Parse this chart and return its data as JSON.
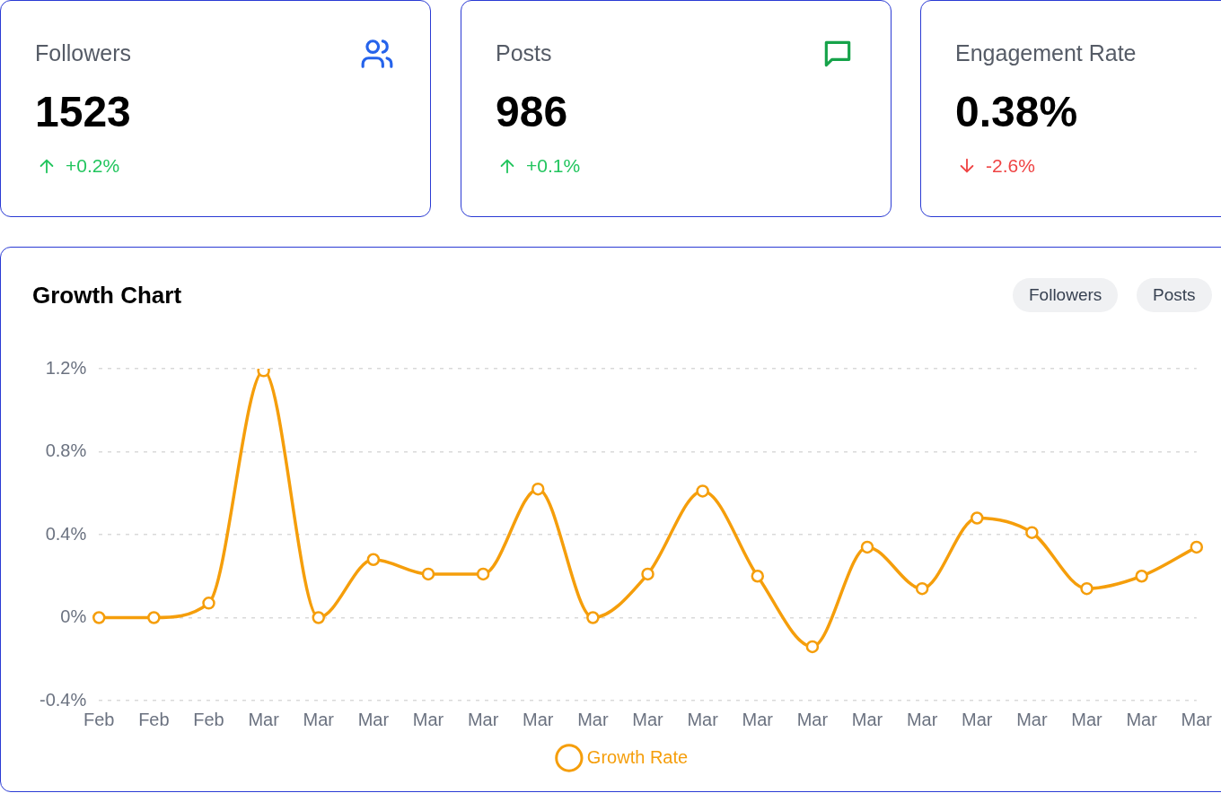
{
  "chart_data": [
    {
      "type": "other",
      "title": "Followers",
      "annotations": [
        "1523",
        "+0.2%"
      ],
      "color": "#22c55e"
    },
    {
      "type": "other",
      "title": "Posts",
      "annotations": [
        "986",
        "+0.1%"
      ],
      "color": "#22c55e"
    },
    {
      "type": "other",
      "title": "Engagement Rate",
      "annotations": [
        "0.38%",
        "-2.6%"
      ],
      "color": "#ef4444"
    },
    {
      "type": "line",
      "title": "Growth Chart",
      "annotations": [
        "Followers",
        "Posts"
      ],
      "categories": [
        "Feb",
        "Feb",
        "Feb",
        "Mar",
        "Mar",
        "Mar",
        "Mar",
        "Mar",
        "Mar",
        "Mar",
        "Mar",
        "Mar",
        "Mar",
        "Mar",
        "Mar",
        "Mar",
        "Mar",
        "Mar",
        "Mar",
        "Mar",
        "Mar"
      ],
      "series": [
        {
          "name": "Growth Rate",
          "color": "#f59e0b",
          "values": [
            0,
            0,
            0.07,
            1.19,
            0,
            0.28,
            0.21,
            0.21,
            0.62,
            0,
            0.21,
            0.61,
            0.2,
            -0.14,
            0.34,
            0.14,
            0.48,
            0.41,
            0.14,
            0.2,
            0.34
          ]
        }
      ],
      "ylim": [
        -0.4,
        1.2
      ],
      "yticks": [
        {
          "value": -0.4,
          "label": "-0.4%"
        },
        {
          "value": 0,
          "label": "0%"
        },
        {
          "value": 0.4,
          "label": "0.4%"
        },
        {
          "value": 0.8,
          "label": "0.8%"
        },
        {
          "value": 1.2,
          "label": "1.2%"
        }
      ],
      "grid": "y",
      "legend": "bottom",
      "marker": "circle",
      "line_style": "solid"
    }
  ]
}
